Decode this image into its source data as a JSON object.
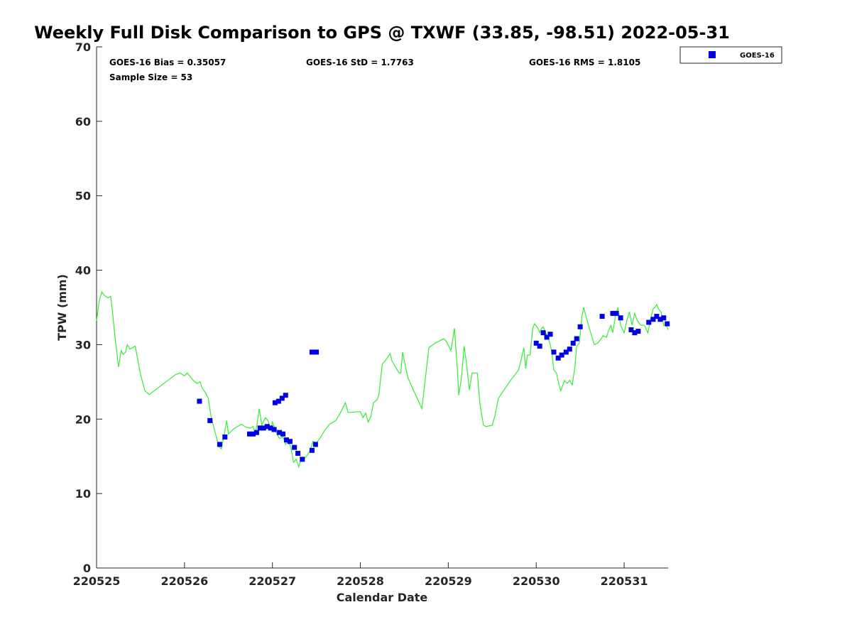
{
  "chart_data": {
    "type": "scatter",
    "title": "Weekly Full Disk Comparison to GPS @ TXWF (33.85, -98.51) 2022-05-31",
    "xlabel": "Calendar Date",
    "ylabel": "TPW (mm)",
    "xlim": [
      0,
      6.5
    ],
    "ylim": [
      0,
      70
    ],
    "x_tick_values": [
      0,
      1,
      2,
      3,
      4,
      5,
      6
    ],
    "x_tick_labels": [
      "220525",
      "220526",
      "220527",
      "220528",
      "220529",
      "220530",
      "220531"
    ],
    "y_ticks": [
      0,
      10,
      20,
      30,
      40,
      50,
      60,
      70
    ],
    "x_units": "days after 220525",
    "grid": false,
    "legend_position": "top-right",
    "stats": {
      "bias": "GOES-16 Bias = 0.35057",
      "std": "GOES-16 StD = 1.7763",
      "rms": "GOES-16 RMS = 1.8105",
      "sample_size": "Sample Size = 53"
    },
    "series": [
      {
        "name": "GOES-16",
        "kind": "scatter",
        "color": "#0000e6",
        "marker": "square",
        "points": [
          [
            1.17,
            22.4
          ],
          [
            1.29,
            19.8
          ],
          [
            1.4,
            16.6
          ],
          [
            1.46,
            17.6
          ],
          [
            1.74,
            18.0
          ],
          [
            1.78,
            18.0
          ],
          [
            1.82,
            18.2
          ],
          [
            1.86,
            18.8
          ],
          [
            1.9,
            18.8
          ],
          [
            1.94,
            19.0
          ],
          [
            1.98,
            18.8
          ],
          [
            2.02,
            18.6
          ],
          [
            2.08,
            18.2
          ],
          [
            2.12,
            18.0
          ],
          [
            2.16,
            17.2
          ],
          [
            2.2,
            17.0
          ],
          [
            2.25,
            16.2
          ],
          [
            2.29,
            15.4
          ],
          [
            2.34,
            14.6
          ],
          [
            2.45,
            15.8
          ],
          [
            2.49,
            16.6
          ],
          [
            2.03,
            22.2
          ],
          [
            2.07,
            22.4
          ],
          [
            2.11,
            22.8
          ],
          [
            2.15,
            23.2
          ],
          [
            2.45,
            29.0
          ],
          [
            2.5,
            29.0
          ],
          [
            5.0,
            30.2
          ],
          [
            5.04,
            29.8
          ],
          [
            5.08,
            31.6
          ],
          [
            5.12,
            31.0
          ],
          [
            5.16,
            31.4
          ],
          [
            5.2,
            29.0
          ],
          [
            5.25,
            28.2
          ],
          [
            5.29,
            28.6
          ],
          [
            5.34,
            29.0
          ],
          [
            5.38,
            29.4
          ],
          [
            5.42,
            30.2
          ],
          [
            5.46,
            30.8
          ],
          [
            5.5,
            32.4
          ],
          [
            5.75,
            33.8
          ],
          [
            5.87,
            34.2
          ],
          [
            5.91,
            34.2
          ],
          [
            5.96,
            33.6
          ],
          [
            6.08,
            32.0
          ],
          [
            6.12,
            31.6
          ],
          [
            6.16,
            31.8
          ],
          [
            6.28,
            33.0
          ],
          [
            6.33,
            33.4
          ],
          [
            6.37,
            33.8
          ],
          [
            6.41,
            33.4
          ],
          [
            6.45,
            33.6
          ],
          [
            6.49,
            32.8
          ]
        ]
      },
      {
        "name": "",
        "kind": "line",
        "color": "#33ee33",
        "points": [
          [
            0.0,
            33.2
          ],
          [
            0.03,
            35.8
          ],
          [
            0.06,
            37.1
          ],
          [
            0.09,
            36.6
          ],
          [
            0.13,
            36.3
          ],
          [
            0.16,
            36.5
          ],
          [
            0.18,
            34.5
          ],
          [
            0.21,
            31.0
          ],
          [
            0.25,
            27.0
          ],
          [
            0.28,
            29.2
          ],
          [
            0.3,
            28.7
          ],
          [
            0.33,
            29.0
          ],
          [
            0.35,
            30.0
          ],
          [
            0.38,
            29.4
          ],
          [
            0.44,
            29.8
          ],
          [
            0.5,
            26.0
          ],
          [
            0.55,
            23.8
          ],
          [
            0.6,
            23.3
          ],
          [
            0.7,
            24.2
          ],
          [
            0.8,
            25.1
          ],
          [
            0.9,
            26.0
          ],
          [
            0.95,
            26.2
          ],
          [
            1.0,
            25.8
          ],
          [
            1.03,
            26.2
          ],
          [
            1.06,
            25.8
          ],
          [
            1.1,
            25.2
          ],
          [
            1.14,
            24.8
          ],
          [
            1.18,
            25.0
          ],
          [
            1.2,
            24.2
          ],
          [
            1.24,
            23.5
          ],
          [
            1.27,
            22.8
          ],
          [
            1.3,
            20.5
          ],
          [
            1.34,
            18.6
          ],
          [
            1.37,
            17.2
          ],
          [
            1.4,
            16.2
          ],
          [
            1.42,
            16.0
          ],
          [
            1.45,
            17.8
          ],
          [
            1.48,
            19.8
          ],
          [
            1.5,
            18.0
          ],
          [
            1.55,
            18.6
          ],
          [
            1.6,
            19.0
          ],
          [
            1.65,
            19.3
          ],
          [
            1.7,
            18.9
          ],
          [
            1.75,
            18.8
          ],
          [
            1.78,
            19.0
          ],
          [
            1.8,
            18.2
          ],
          [
            1.82,
            18.8
          ],
          [
            1.85,
            21.4
          ],
          [
            1.88,
            19.2
          ],
          [
            1.92,
            20.2
          ],
          [
            1.95,
            19.8
          ],
          [
            1.98,
            18.6
          ],
          [
            2.0,
            19.6
          ],
          [
            2.02,
            19.0
          ],
          [
            2.05,
            18.0
          ],
          [
            2.08,
            17.4
          ],
          [
            2.12,
            17.6
          ],
          [
            2.15,
            16.6
          ],
          [
            2.18,
            17.0
          ],
          [
            2.21,
            16.2
          ],
          [
            2.24,
            14.2
          ],
          [
            2.27,
            14.6
          ],
          [
            2.3,
            13.6
          ],
          [
            2.33,
            14.8
          ],
          [
            2.36,
            14.6
          ],
          [
            2.4,
            15.2
          ],
          [
            2.43,
            15.8
          ],
          [
            2.46,
            17.0
          ],
          [
            2.5,
            16.8
          ],
          [
            2.55,
            17.6
          ],
          [
            2.6,
            18.6
          ],
          [
            2.65,
            19.3
          ],
          [
            2.72,
            19.8
          ],
          [
            2.78,
            21.0
          ],
          [
            2.83,
            22.2
          ],
          [
            2.86,
            20.9
          ],
          [
            2.9,
            20.9
          ],
          [
            2.97,
            21.0
          ],
          [
            3.0,
            21.0
          ],
          [
            3.03,
            20.2
          ],
          [
            3.06,
            20.8
          ],
          [
            3.09,
            19.6
          ],
          [
            3.12,
            20.4
          ],
          [
            3.15,
            22.2
          ],
          [
            3.19,
            22.6
          ],
          [
            3.21,
            23.2
          ],
          [
            3.25,
            27.4
          ],
          [
            3.28,
            27.8
          ],
          [
            3.34,
            28.8
          ],
          [
            3.36,
            27.8
          ],
          [
            3.4,
            27.0
          ],
          [
            3.44,
            26.2
          ],
          [
            3.46,
            26.2
          ],
          [
            3.48,
            29.0
          ],
          [
            3.5,
            27.8
          ],
          [
            3.54,
            25.6
          ],
          [
            3.6,
            24.0
          ],
          [
            3.7,
            21.4
          ],
          [
            3.78,
            29.6
          ],
          [
            3.85,
            30.2
          ],
          [
            3.95,
            30.8
          ],
          [
            3.98,
            30.4
          ],
          [
            4.03,
            29.2
          ],
          [
            4.07,
            32.2
          ],
          [
            4.1,
            27.2
          ],
          [
            4.12,
            23.2
          ],
          [
            4.15,
            25.6
          ],
          [
            4.18,
            29.8
          ],
          [
            4.21,
            27.2
          ],
          [
            4.24,
            23.9
          ],
          [
            4.27,
            26.2
          ],
          [
            4.33,
            26.2
          ],
          [
            4.36,
            22.0
          ],
          [
            4.4,
            19.2
          ],
          [
            4.43,
            19.0
          ],
          [
            4.5,
            19.2
          ],
          [
            4.53,
            20.4
          ],
          [
            4.57,
            22.8
          ],
          [
            4.65,
            24.2
          ],
          [
            4.72,
            25.4
          ],
          [
            4.8,
            26.6
          ],
          [
            4.86,
            29.6
          ],
          [
            4.88,
            26.8
          ],
          [
            4.9,
            28.6
          ],
          [
            4.93,
            28.6
          ],
          [
            4.96,
            32.2
          ],
          [
            4.98,
            32.8
          ],
          [
            5.02,
            32.2
          ],
          [
            5.04,
            31.6
          ],
          [
            5.06,
            32.2
          ],
          [
            5.08,
            32.4
          ],
          [
            5.12,
            31.2
          ],
          [
            5.14,
            30.8
          ],
          [
            5.16,
            30.0
          ],
          [
            5.18,
            28.8
          ],
          [
            5.2,
            26.6
          ],
          [
            5.23,
            26.2
          ],
          [
            5.26,
            24.6
          ],
          [
            5.28,
            23.8
          ],
          [
            5.32,
            25.2
          ],
          [
            5.35,
            24.8
          ],
          [
            5.38,
            25.2
          ],
          [
            5.41,
            24.6
          ],
          [
            5.44,
            27.0
          ],
          [
            5.46,
            29.8
          ],
          [
            5.49,
            30.2
          ],
          [
            5.52,
            33.8
          ],
          [
            5.54,
            35.0
          ],
          [
            5.58,
            33.2
          ],
          [
            5.62,
            31.6
          ],
          [
            5.66,
            30.0
          ],
          [
            5.7,
            30.2
          ],
          [
            5.74,
            30.8
          ],
          [
            5.76,
            31.2
          ],
          [
            5.8,
            31.0
          ],
          [
            5.82,
            31.8
          ],
          [
            5.85,
            32.6
          ],
          [
            5.87,
            31.6
          ],
          [
            5.9,
            33.8
          ],
          [
            5.93,
            35.0
          ],
          [
            5.96,
            32.6
          ],
          [
            6.0,
            31.6
          ],
          [
            6.03,
            33.2
          ],
          [
            6.06,
            34.4
          ],
          [
            6.09,
            32.6
          ],
          [
            6.12,
            34.2
          ],
          [
            6.15,
            33.2
          ],
          [
            6.19,
            32.6
          ],
          [
            6.23,
            32.6
          ],
          [
            6.27,
            31.6
          ],
          [
            6.3,
            33.4
          ],
          [
            6.33,
            34.8
          ],
          [
            6.35,
            35.0
          ],
          [
            6.37,
            35.4
          ],
          [
            6.39,
            34.8
          ],
          [
            6.42,
            34.4
          ],
          [
            6.45,
            32.6
          ],
          [
            6.48,
            32.6
          ],
          [
            6.5,
            32.0
          ]
        ]
      }
    ]
  }
}
